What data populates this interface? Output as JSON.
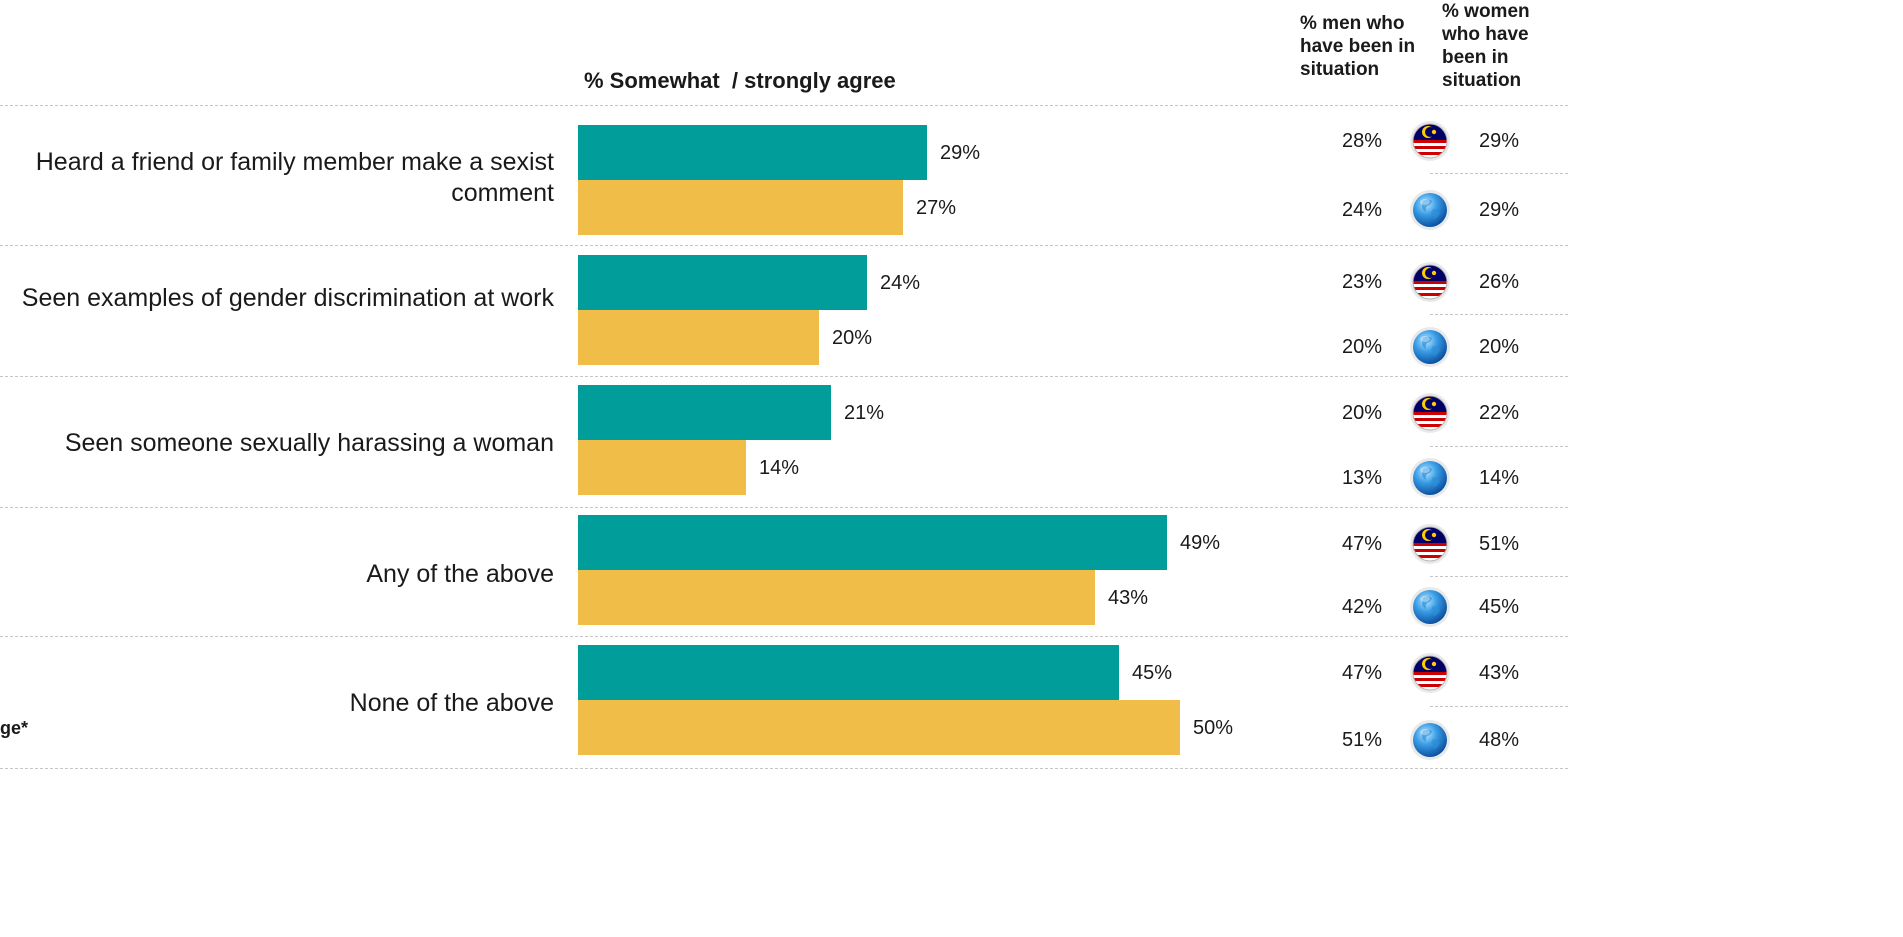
{
  "colors": {
    "malaysia": "#009d9b",
    "global": "#f0bd48"
  },
  "header": {
    "title": "% Somewhat  / strongly agree",
    "men_col": "% men who have been in situation",
    "women_col": "% women who have been in situation"
  },
  "footnote": "ge*",
  "rows_icons": [
    "malaysia-flag-icon",
    "globe-icon"
  ],
  "chart_data": {
    "type": "bar",
    "orientation": "horizontal",
    "title": "% Somewhat  / strongly agree",
    "categories": [
      "Heard a friend or family member make a sexist comment",
      "Seen examples of gender discrimination at work",
      "Seen someone sexually harassing a woman",
      "Any of the above",
      "None of the above"
    ],
    "series": [
      {
        "values": [
          29,
          24,
          21,
          49,
          45
        ],
        "labels": [
          "29%",
          "24%",
          "21%",
          "49%",
          "45%"
        ],
        "color": "#009d9b",
        "icon": "malaysia-flag-icon"
      },
      {
        "values": [
          27,
          20,
          14,
          43,
          50
        ],
        "labels": [
          "27%",
          "20%",
          "14%",
          "43%",
          "50%"
        ],
        "color": "#f0bd48",
        "icon": "globe-icon"
      }
    ],
    "men": [
      [
        "28%",
        "24%"
      ],
      [
        "23%",
        "20%"
      ],
      [
        "20%",
        "13%"
      ],
      [
        "47%",
        "42%"
      ],
      [
        "47%",
        "51%"
      ]
    ],
    "women": [
      [
        "29%",
        "29%"
      ],
      [
        "26%",
        "20%"
      ],
      [
        "22%",
        "14%"
      ],
      [
        "51%",
        "45%"
      ],
      [
        "43%",
        "48%"
      ]
    ]
  }
}
